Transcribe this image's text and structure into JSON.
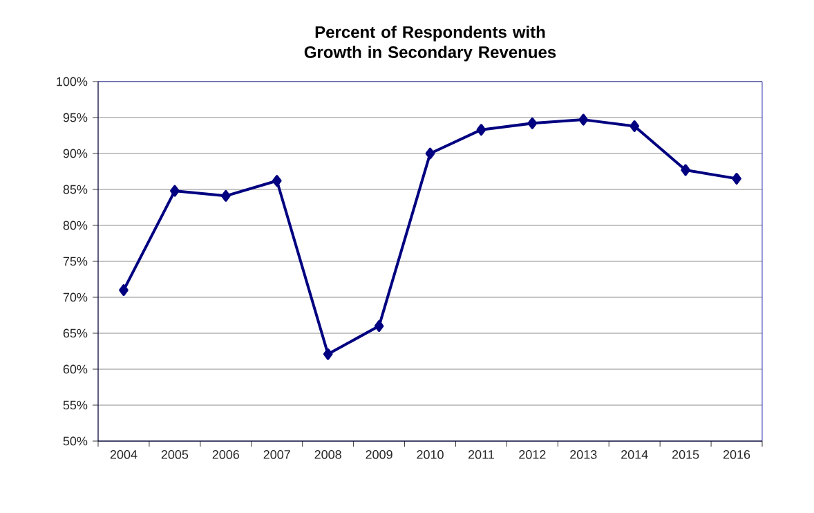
{
  "chart_data": {
    "type": "line",
    "title": "Percent of Respondents with Growth in Secondary Revenues",
    "categories": [
      "2004",
      "2005",
      "2006",
      "2007",
      "2008",
      "2009",
      "2010",
      "2011",
      "2012",
      "2013",
      "2014",
      "2015",
      "2016"
    ],
    "series": [
      {
        "color": "#000080",
        "values": [
          71.0,
          84.8,
          84.1,
          86.2,
          62.1,
          66.0,
          90.0,
          93.3,
          94.2,
          94.7,
          93.8,
          87.7,
          86.5
        ]
      }
    ],
    "ylim": [
      50,
      100
    ],
    "yticks": [
      {
        "value": 50,
        "label": "50%"
      },
      {
        "value": 55,
        "label": "55%"
      },
      {
        "value": 60,
        "label": "60%"
      },
      {
        "value": 65,
        "label": "65%"
      },
      {
        "value": 70,
        "label": "70%"
      },
      {
        "value": 75,
        "label": "75%"
      },
      {
        "value": 80,
        "label": "80%"
      },
      {
        "value": 85,
        "label": "85%"
      },
      {
        "value": 90,
        "label": "90%"
      },
      {
        "value": 95,
        "label": "95%"
      },
      {
        "value": 100,
        "label": "100%"
      }
    ],
    "grid": "y",
    "marker": "diamond",
    "line_style": "solid"
  }
}
